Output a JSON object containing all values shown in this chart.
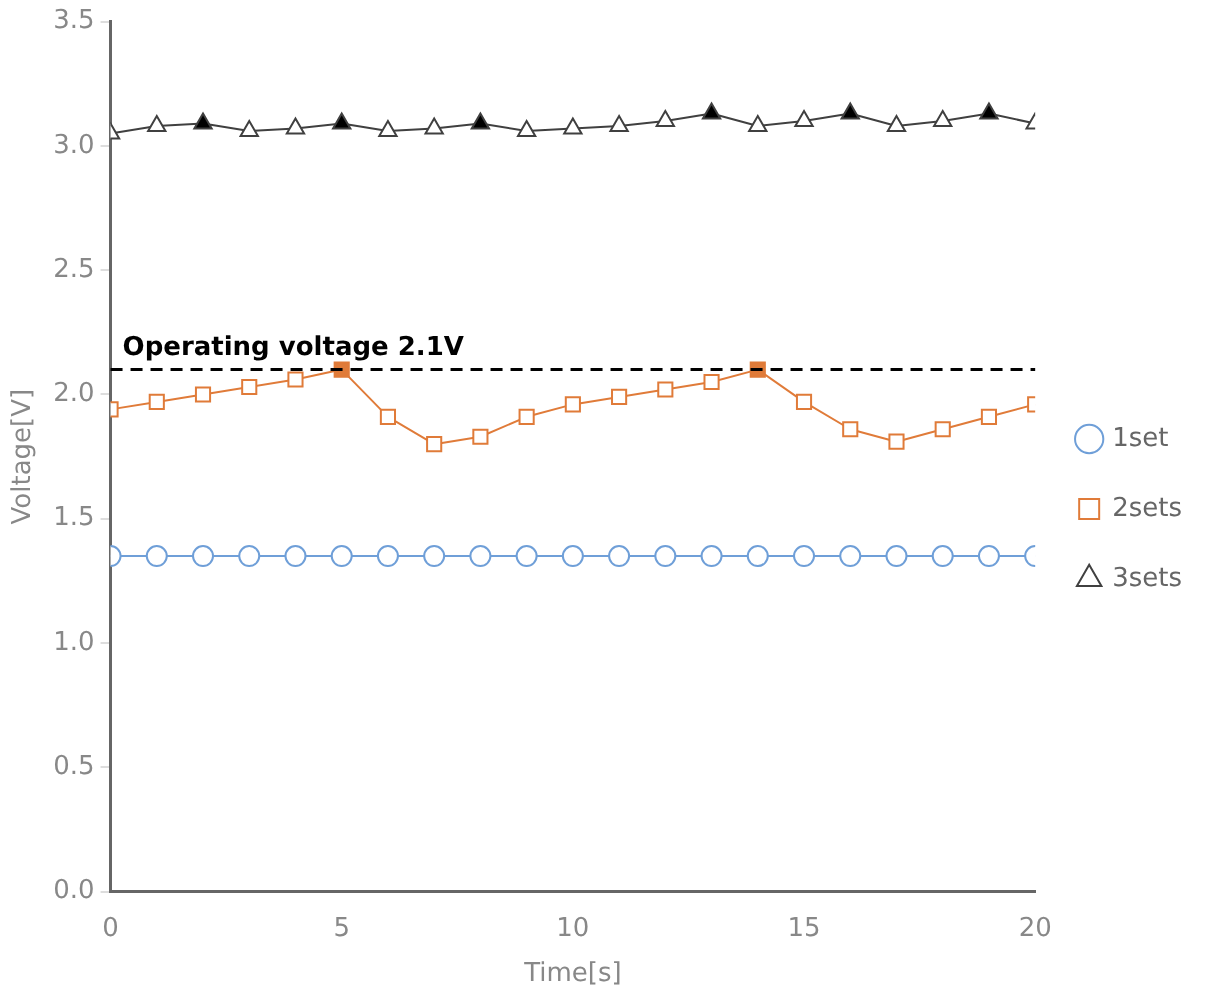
{
  "chart_data": {
    "type": "line",
    "xlabel": "Time[s]",
    "ylabel": "Voltage[V]",
    "x": [
      0,
      1,
      2,
      3,
      4,
      5,
      6,
      7,
      8,
      9,
      10,
      11,
      12,
      13,
      14,
      15,
      16,
      17,
      18,
      19,
      20
    ],
    "xlim": [
      0,
      20
    ],
    "xticks": [
      0,
      5,
      10,
      15,
      20
    ],
    "ylim": [
      0,
      3.5
    ],
    "yticks": [
      {
        "value": 0,
        "label": "0.0"
      },
      0.5,
      {
        "value": 1,
        "label": "1.0"
      },
      1.5,
      {
        "value": 2,
        "label": "2.0"
      },
      2.5,
      {
        "value": 3,
        "label": "3.0"
      },
      3.5
    ],
    "grid": false,
    "legend": "right",
    "series": [
      {
        "name": "1set",
        "color": "#6f9fd8",
        "marker": "circle",
        "values": [
          1.35,
          1.35,
          1.35,
          1.35,
          1.35,
          1.35,
          1.35,
          1.35,
          1.35,
          1.35,
          1.35,
          1.35,
          1.35,
          1.35,
          1.35,
          1.35,
          1.35,
          1.35,
          1.35,
          1.35,
          1.35
        ]
      },
      {
        "name": "2sets",
        "color": "#e07b39",
        "marker": "square",
        "colors": [
          "#ffffff",
          "#ffffff",
          "#ffffff",
          "#ffffff",
          "#ffffff",
          "#e07b39",
          "#ffffff",
          "#ffffff",
          "#ffffff",
          "#ffffff",
          "#ffffff",
          "#ffffff",
          "#ffffff",
          "#ffffff",
          "#e07b39",
          "#ffffff",
          "#ffffff",
          "#ffffff",
          "#ffffff",
          "#ffffff",
          "#ffffff"
        ],
        "values": [
          1.94,
          1.97,
          2.0,
          2.03,
          2.06,
          2.1,
          1.91,
          1.8,
          1.83,
          1.91,
          1.96,
          1.99,
          2.02,
          2.05,
          2.1,
          1.97,
          1.86,
          1.81,
          1.86,
          1.91,
          1.96
        ]
      },
      {
        "name": "3sets",
        "color": "#404040",
        "marker": "triangle",
        "colors": [
          "#ffffff",
          "#ffffff",
          "#000000",
          "#ffffff",
          "#ffffff",
          "#000000",
          "#ffffff",
          "#ffffff",
          "#000000",
          "#ffffff",
          "#ffffff",
          "#ffffff",
          "#ffffff",
          "#000000",
          "#ffffff",
          "#ffffff",
          "#000000",
          "#ffffff",
          "#ffffff",
          "#000000",
          "#ffffff"
        ],
        "values": [
          3.05,
          3.08,
          3.09,
          3.06,
          3.07,
          3.09,
          3.06,
          3.07,
          3.09,
          3.06,
          3.07,
          3.08,
          3.1,
          3.13,
          3.08,
          3.1,
          3.13,
          3.08,
          3.1,
          3.13,
          3.09
        ]
      }
    ],
    "ref_lines": [
      {
        "axis": "y",
        "value": 2.1,
        "label": "Operating voltage 2.1V",
        "color": "#000000",
        "line_style": "dashed"
      }
    ]
  }
}
